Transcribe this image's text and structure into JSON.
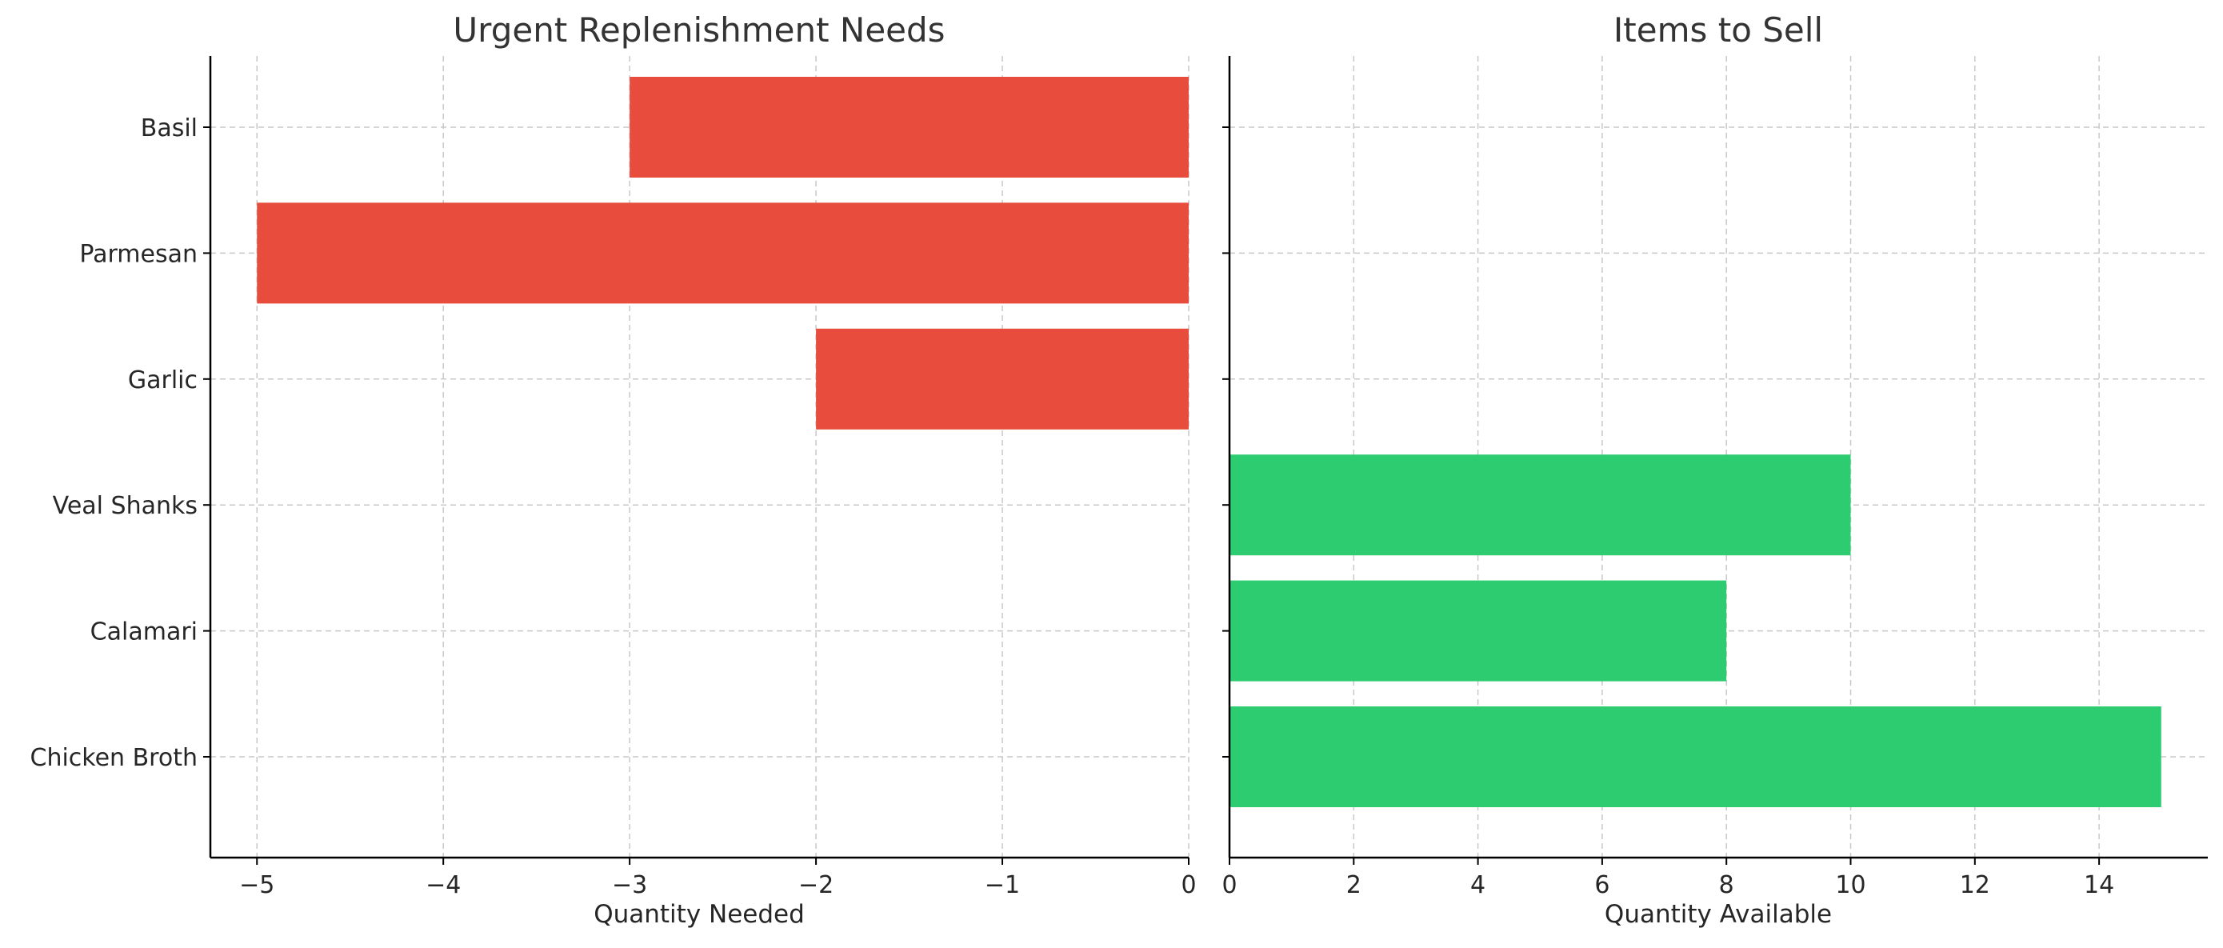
{
  "chart_data": [
    {
      "type": "bar",
      "orientation": "horizontal",
      "title": "Urgent Replenishment Needs",
      "xlabel": "Quantity Needed",
      "ylabel": "",
      "categories": [
        "Basil",
        "Parmesan",
        "Garlic",
        "Veal Shanks",
        "Calamari",
        "Chicken Broth"
      ],
      "values": [
        -3,
        -5,
        -2,
        null,
        null,
        null
      ],
      "xlim": [
        -5.25,
        0
      ],
      "xticks": [
        -5,
        -4,
        -3,
        -2,
        -1,
        0
      ],
      "xtick_labels": [
        "−5",
        "−4",
        "−3",
        "−2",
        "−1",
        "0"
      ],
      "grid": true,
      "color": "#e74c3c"
    },
    {
      "type": "bar",
      "orientation": "horizontal",
      "title": "Items to Sell",
      "xlabel": "Quantity Available",
      "ylabel": "",
      "categories": [
        "Basil",
        "Parmesan",
        "Garlic",
        "Veal Shanks",
        "Calamari",
        "Chicken Broth"
      ],
      "values": [
        null,
        null,
        null,
        10,
        8,
        15
      ],
      "xlim": [
        0,
        15.75
      ],
      "xticks": [
        0,
        2,
        4,
        6,
        8,
        10,
        12,
        14
      ],
      "xtick_labels": [
        "0",
        "2",
        "4",
        "6",
        "8",
        "10",
        "12",
        "14"
      ],
      "grid": true,
      "color": "#2ecc71"
    }
  ]
}
